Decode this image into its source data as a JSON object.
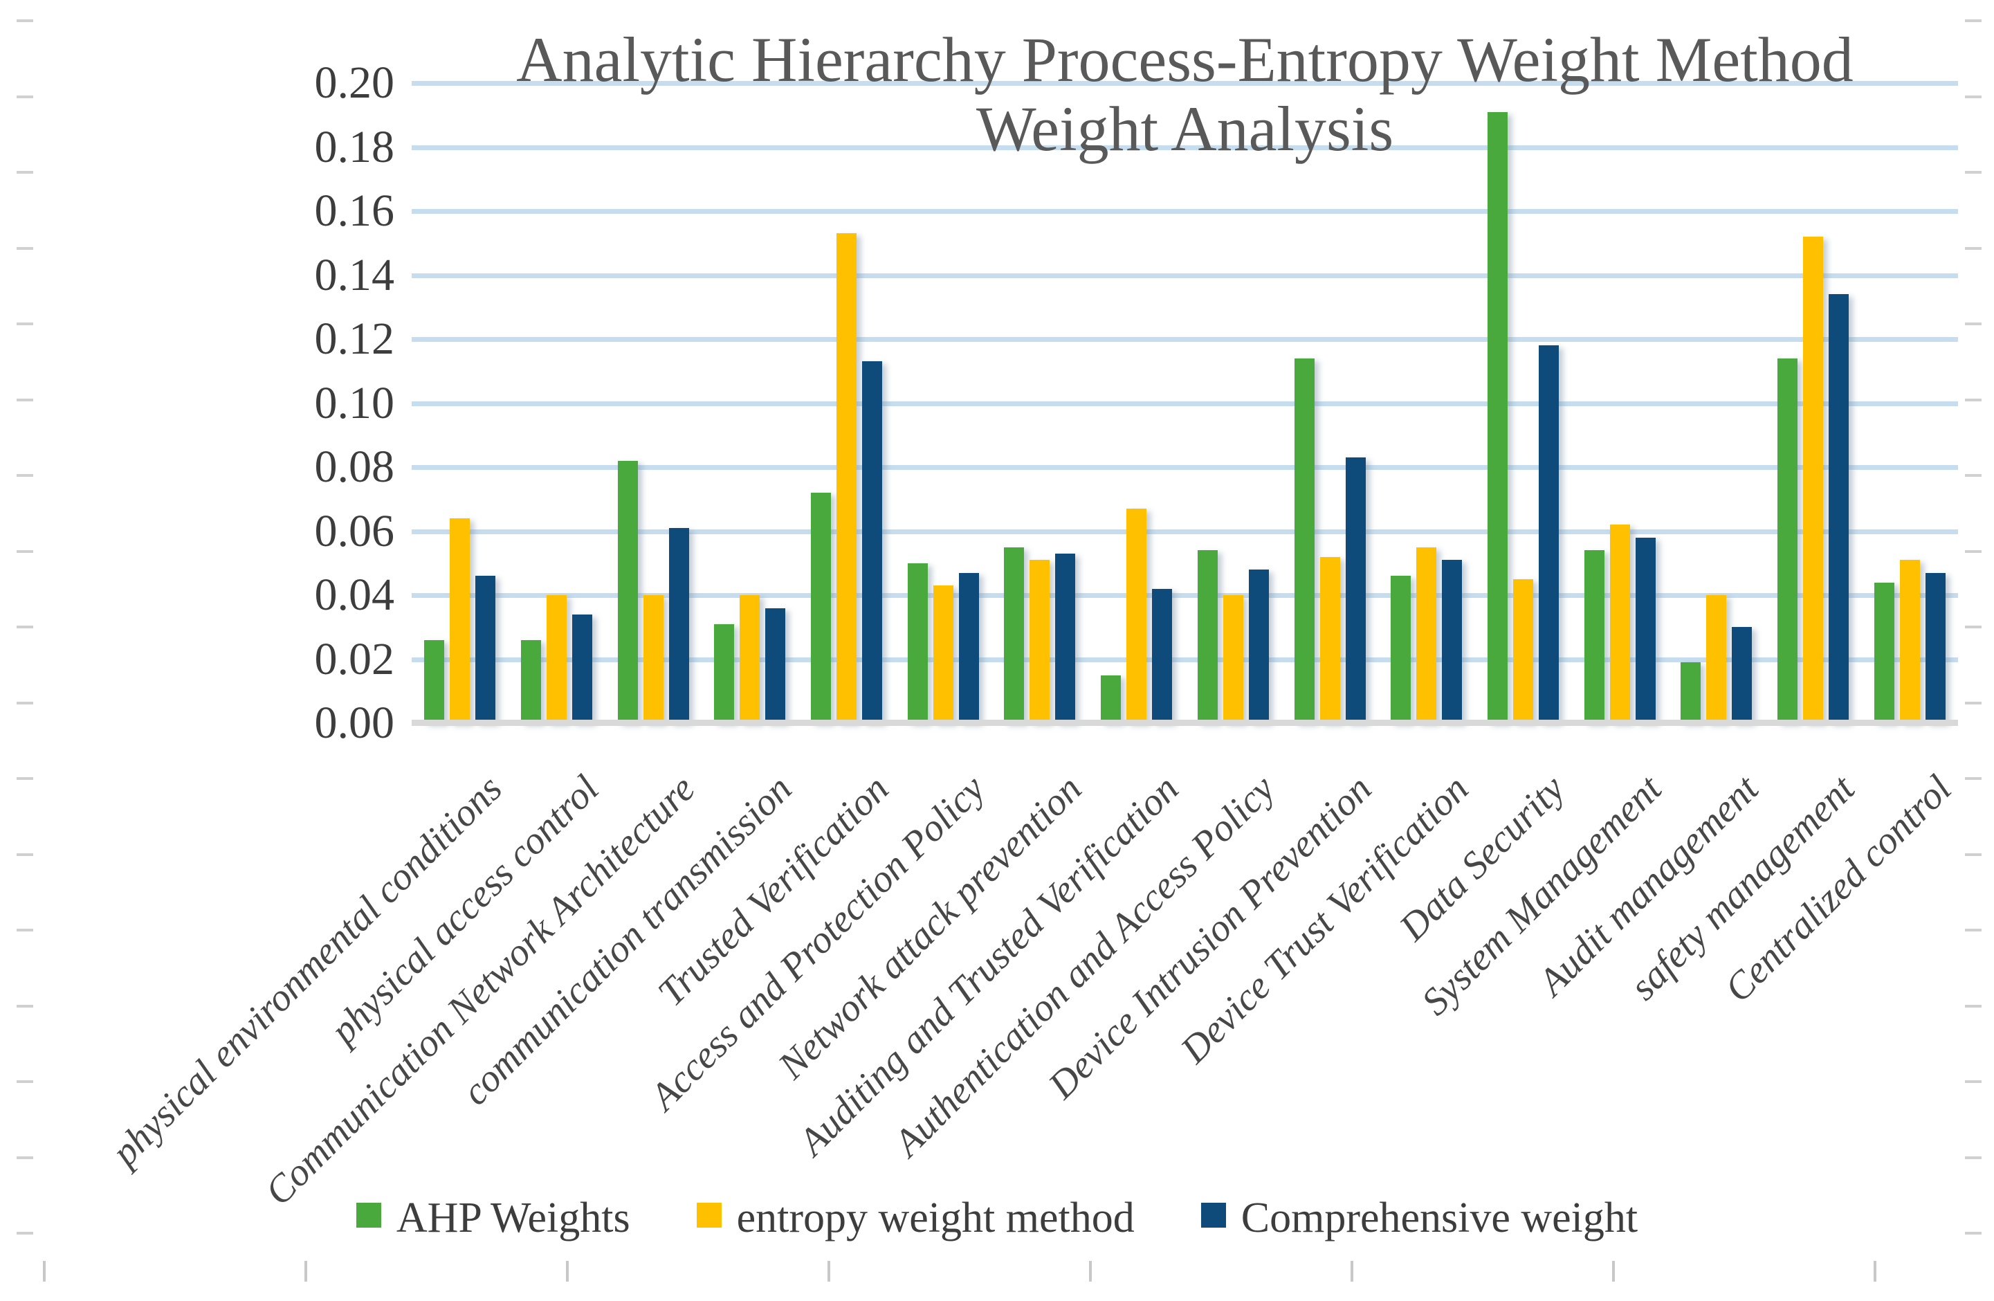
{
  "page": {
    "background": "#ffffff"
  },
  "chart": {
    "title_lines": [
      "Analytic Hierarchy Process-Entropy Weight Method",
      "Weight Analysis"
    ],
    "colors": {
      "title_text": "#595959",
      "axis_tick_text": "#3d3d3d",
      "category_text": "#474747",
      "legend_text": "#3d3d3d",
      "gridline": "#c6ddef",
      "axis_baseline": "#d9d9d9",
      "edge_tick": "#cccccc"
    }
  },
  "chart_data": {
    "type": "bar",
    "title": "Analytic Hierarchy Process-Entropy Weight Method Weight Analysis",
    "xlabel": "",
    "ylabel": "",
    "ylim": [
      0,
      0.2
    ],
    "ytick_step": 0.02,
    "grid": true,
    "legend_position": "bottom",
    "y_tick_labels": [
      "0.20",
      "0.18",
      "0.16",
      "0.14",
      "0.12",
      "0.10",
      "0.08",
      "0.06",
      "0.04",
      "0.02",
      "0.00"
    ],
    "categories": [
      "physical environmental conditions",
      "physical access control",
      "Communication Network Architecture",
      "communication transmission",
      "Trusted Verification",
      "Access and Protection Policy",
      "Network attack prevention",
      "Auditing and Trusted Verification",
      "Authentication and Access Policy",
      "Device Intrusion Prevention",
      "Device Trust Verification",
      "Data Security",
      "System Management",
      "Audit management",
      "safety management",
      "Centralized control"
    ],
    "series": [
      {
        "name": "AHP Weights",
        "color": "#4aa93c",
        "values": [
          0.026,
          0.026,
          0.082,
          0.031,
          0.072,
          0.05,
          0.055,
          0.015,
          0.054,
          0.114,
          0.046,
          0.191,
          0.054,
          0.019,
          0.114,
          0.044
        ]
      },
      {
        "name": "entropy weight method",
        "color": "#ffc000",
        "values": [
          0.064,
          0.04,
          0.04,
          0.04,
          0.153,
          0.043,
          0.051,
          0.067,
          0.04,
          0.052,
          0.055,
          0.045,
          0.062,
          0.04,
          0.152,
          0.051
        ]
      },
      {
        "name": "Comprehensive weight",
        "color": "#0e4a7a",
        "values": [
          0.046,
          0.034,
          0.061,
          0.036,
          0.113,
          0.047,
          0.053,
          0.042,
          0.048,
          0.083,
          0.051,
          0.118,
          0.058,
          0.03,
          0.134,
          0.047
        ]
      }
    ]
  }
}
